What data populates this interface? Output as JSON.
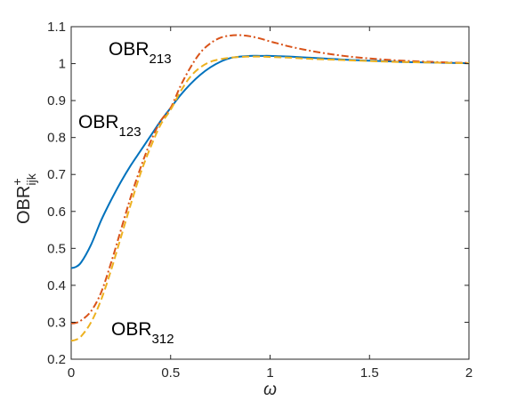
{
  "chart_data": {
    "type": "line",
    "title": "",
    "xlabel": "ω",
    "ylabel": {
      "base": "OBR",
      "sup": "+",
      "sub": "ijk"
    },
    "xlim": [
      0,
      2
    ],
    "ylim": [
      0.2,
      1.1
    ],
    "xticks": [
      0,
      0.5,
      1,
      1.5,
      2
    ],
    "xtick_labels": [
      "0",
      "0.5",
      "1",
      "1.5",
      "2"
    ],
    "yticks": [
      0.2,
      0.3,
      0.4,
      0.5,
      0.6,
      0.7,
      0.8,
      0.9,
      1.0,
      1.1
    ],
    "ytick_labels": [
      "0.2",
      "0.3",
      "0.4",
      "0.5",
      "0.6",
      "0.7",
      "0.8",
      "0.9",
      "1",
      "1.1"
    ],
    "grid": false,
    "legend": "none",
    "series": [
      {
        "name": "OBR123",
        "color": "#0072BD",
        "style": "solid",
        "x": [
          0,
          0.02,
          0.05,
          0.1,
          0.15,
          0.2,
          0.25,
          0.3,
          0.35,
          0.4,
          0.45,
          0.5,
          0.55,
          0.6,
          0.65,
          0.7,
          0.75,
          0.8,
          0.85,
          0.9,
          0.95,
          1.0,
          1.05,
          1.1,
          1.2,
          1.3,
          1.4,
          1.5,
          1.6,
          1.7,
          1.8,
          1.9,
          2.0
        ],
        "y": [
          0.447,
          0.449,
          0.462,
          0.51,
          0.575,
          0.63,
          0.68,
          0.725,
          0.765,
          0.805,
          0.845,
          0.88,
          0.915,
          0.945,
          0.97,
          0.99,
          1.005,
          1.015,
          1.019,
          1.021,
          1.021,
          1.021,
          1.02,
          1.019,
          1.016,
          1.013,
          1.01,
          1.008,
          1.006,
          1.004,
          1.003,
          1.002,
          1.001
        ]
      },
      {
        "name": "OBR213",
        "color": "#D95319",
        "style": "dashdot",
        "x": [
          0,
          0.02,
          0.05,
          0.1,
          0.15,
          0.2,
          0.25,
          0.3,
          0.35,
          0.4,
          0.45,
          0.5,
          0.55,
          0.6,
          0.65,
          0.7,
          0.75,
          0.8,
          0.85,
          0.9,
          0.95,
          1.0,
          1.05,
          1.1,
          1.2,
          1.3,
          1.4,
          1.5,
          1.6,
          1.7,
          1.8,
          1.9,
          2.0
        ],
        "y": [
          0.297,
          0.298,
          0.305,
          0.33,
          0.38,
          0.46,
          0.55,
          0.64,
          0.72,
          0.79,
          0.845,
          0.88,
          0.94,
          0.99,
          1.03,
          1.055,
          1.07,
          1.076,
          1.077,
          1.074,
          1.068,
          1.06,
          1.053,
          1.046,
          1.035,
          1.026,
          1.019,
          1.014,
          1.01,
          1.007,
          1.005,
          1.003,
          1.002
        ]
      },
      {
        "name": "OBR312",
        "color": "#EDB120",
        "style": "dashed",
        "x": [
          0,
          0.02,
          0.05,
          0.1,
          0.15,
          0.2,
          0.25,
          0.3,
          0.35,
          0.4,
          0.45,
          0.5,
          0.55,
          0.6,
          0.65,
          0.7,
          0.75,
          0.8,
          0.85,
          0.9,
          0.95,
          1.0,
          1.05,
          1.1,
          1.2,
          1.3,
          1.4,
          1.5,
          1.6,
          1.7,
          1.8,
          1.9,
          2.0
        ],
        "y": [
          0.25,
          0.252,
          0.262,
          0.3,
          0.36,
          0.44,
          0.53,
          0.62,
          0.705,
          0.775,
          0.835,
          0.875,
          0.925,
          0.965,
          0.99,
          1.005,
          1.012,
          1.016,
          1.018,
          1.019,
          1.019,
          1.018,
          1.017,
          1.016,
          1.013,
          1.011,
          1.009,
          1.007,
          1.005,
          1.004,
          1.003,
          1.002,
          1.001
        ]
      }
    ],
    "annotations": [
      {
        "base": "OBR",
        "sub": "213",
        "series": "OBR213"
      },
      {
        "base": "OBR",
        "sub": "123",
        "series": "OBR123"
      },
      {
        "base": "OBR",
        "sub": "312",
        "series": "OBR312"
      }
    ]
  }
}
